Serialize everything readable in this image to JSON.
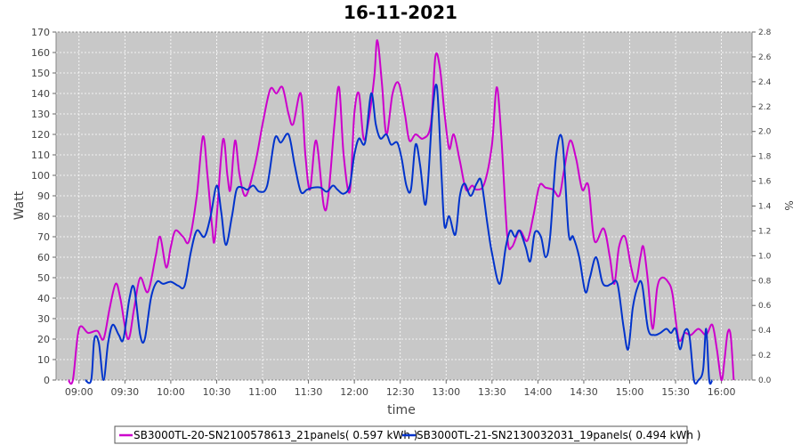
{
  "chart_data": {
    "type": "line",
    "title": "16-11-2021",
    "xlabel": "time",
    "ylabel": "Watt",
    "y2label": "%",
    "ylim": [
      0,
      170
    ],
    "y2lim": [
      0,
      2.8
    ],
    "xlim": [
      "08:45",
      "16:20"
    ],
    "yticks": [
      0,
      10,
      20,
      30,
      40,
      50,
      60,
      70,
      80,
      90,
      100,
      110,
      120,
      130,
      140,
      150,
      160,
      170
    ],
    "y2ticks": [
      "0.0",
      "0.2",
      "0.4",
      "0.6",
      "0.8",
      "1.0",
      "1.2",
      "1.4",
      "1.6",
      "1.8",
      "2.0",
      "2.2",
      "2.4",
      "2.6",
      "2.8"
    ],
    "xticks": [
      "09:00",
      "09:30",
      "10:00",
      "10:30",
      "11:00",
      "11:30",
      "12:00",
      "12:30",
      "13:00",
      "13:30",
      "14:00",
      "14:30",
      "15:00",
      "15:30",
      "16:00"
    ],
    "grid": true,
    "legend_position": "bottom",
    "series": [
      {
        "name": "SB3000TL-20-SN2100578613_21panels( 0.597 kWh )",
        "color": "#cc00cc",
        "points": [
          [
            "08:53",
            0
          ],
          [
            "08:56",
            0
          ],
          [
            "09:00",
            25
          ],
          [
            "09:06",
            23
          ],
          [
            "09:12",
            24
          ],
          [
            "09:16",
            20
          ],
          [
            "09:20",
            35
          ],
          [
            "09:24",
            47
          ],
          [
            "09:27",
            40
          ],
          [
            "09:32",
            20
          ],
          [
            "09:36",
            35
          ],
          [
            "09:40",
            50
          ],
          [
            "09:45",
            43
          ],
          [
            "09:50",
            60
          ],
          [
            "09:53",
            70
          ],
          [
            "09:57",
            55
          ],
          [
            "10:00",
            65
          ],
          [
            "10:03",
            73
          ],
          [
            "10:08",
            70
          ],
          [
            "10:12",
            68
          ],
          [
            "10:17",
            90
          ],
          [
            "10:21",
            119
          ],
          [
            "10:24",
            100
          ],
          [
            "10:27",
            75
          ],
          [
            "10:29",
            70
          ],
          [
            "10:34",
            117
          ],
          [
            "10:37",
            100
          ],
          [
            "10:39",
            93
          ],
          [
            "10:42",
            117
          ],
          [
            "10:45",
            100
          ],
          [
            "10:49",
            90
          ],
          [
            "10:55",
            105
          ],
          [
            "11:00",
            125
          ],
          [
            "11:05",
            142
          ],
          [
            "11:09",
            140
          ],
          [
            "11:13",
            143
          ],
          [
            "11:17",
            130
          ],
          [
            "11:20",
            125
          ],
          [
            "11:25",
            140
          ],
          [
            "11:28",
            110
          ],
          [
            "11:31",
            93
          ],
          [
            "11:35",
            117
          ],
          [
            "11:40",
            85
          ],
          [
            "11:43",
            90
          ],
          [
            "11:47",
            125
          ],
          [
            "11:50",
            143
          ],
          [
            "11:53",
            110
          ],
          [
            "11:57",
            92
          ],
          [
            "12:00",
            130
          ],
          [
            "12:03",
            140
          ],
          [
            "12:06",
            118
          ],
          [
            "12:09",
            125
          ],
          [
            "12:13",
            148
          ],
          [
            "12:15",
            166
          ],
          [
            "12:18",
            145
          ],
          [
            "12:21",
            120
          ],
          [
            "12:25",
            140
          ],
          [
            "12:29",
            145
          ],
          [
            "12:33",
            130
          ],
          [
            "12:36",
            117
          ],
          [
            "12:40",
            120
          ],
          [
            "12:45",
            118
          ],
          [
            "12:50",
            125
          ],
          [
            "12:53",
            158
          ],
          [
            "12:56",
            152
          ],
          [
            "12:59",
            130
          ],
          [
            "13:02",
            113
          ],
          [
            "13:05",
            120
          ],
          [
            "13:09",
            107
          ],
          [
            "13:13",
            93
          ],
          [
            "13:17",
            95
          ],
          [
            "13:20",
            93
          ],
          [
            "13:25",
            96
          ],
          [
            "13:30",
            115
          ],
          [
            "13:33",
            143
          ],
          [
            "13:36",
            120
          ],
          [
            "13:40",
            70
          ],
          [
            "13:43",
            65
          ],
          [
            "13:48",
            73
          ],
          [
            "13:53",
            68
          ],
          [
            "13:57",
            80
          ],
          [
            "14:01",
            95
          ],
          [
            "14:05",
            94
          ],
          [
            "14:10",
            93
          ],
          [
            "14:14",
            90
          ],
          [
            "14:17",
            102
          ],
          [
            "14:21",
            117
          ],
          [
            "14:25",
            108
          ],
          [
            "14:29",
            93
          ],
          [
            "14:33",
            95
          ],
          [
            "14:37",
            68
          ],
          [
            "14:43",
            74
          ],
          [
            "14:47",
            60
          ],
          [
            "14:50",
            47
          ],
          [
            "14:53",
            65
          ],
          [
            "14:57",
            70
          ],
          [
            "15:01",
            55
          ],
          [
            "15:04",
            48
          ],
          [
            "15:07",
            60
          ],
          [
            "15:09",
            65
          ],
          [
            "15:12",
            48
          ],
          [
            "15:15",
            25
          ],
          [
            "15:18",
            45
          ],
          [
            "15:21",
            50
          ],
          [
            "15:25",
            48
          ],
          [
            "15:28",
            42
          ],
          [
            "15:32",
            20
          ],
          [
            "15:36",
            23
          ],
          [
            "15:40",
            22
          ],
          [
            "15:45",
            25
          ],
          [
            "15:50",
            22
          ],
          [
            "15:54",
            27
          ],
          [
            "15:57",
            15
          ],
          [
            "16:00",
            0
          ],
          [
            "16:02",
            10
          ],
          [
            "16:04",
            23
          ],
          [
            "16:06",
            22
          ],
          [
            "16:08",
            0
          ]
        ]
      },
      {
        "name": "SB3000TL-21-SN2130032031_19panels( 0.494 kWh )",
        "color": "#0033cc",
        "points": [
          [
            "09:04",
            0
          ],
          [
            "09:08",
            0
          ],
          [
            "09:10",
            20
          ],
          [
            "09:13",
            18
          ],
          [
            "09:16",
            0
          ],
          [
            "09:19",
            18
          ],
          [
            "09:22",
            27
          ],
          [
            "09:26",
            22
          ],
          [
            "09:29",
            20
          ],
          [
            "09:33",
            40
          ],
          [
            "09:36",
            45
          ],
          [
            "09:40",
            22
          ],
          [
            "09:43",
            20
          ],
          [
            "09:47",
            40
          ],
          [
            "09:51",
            48
          ],
          [
            "09:55",
            47
          ],
          [
            "10:00",
            48
          ],
          [
            "10:05",
            46
          ],
          [
            "10:09",
            46
          ],
          [
            "10:13",
            62
          ],
          [
            "10:17",
            73
          ],
          [
            "10:22",
            70
          ],
          [
            "10:26",
            80
          ],
          [
            "10:30",
            95
          ],
          [
            "10:33",
            82
          ],
          [
            "10:36",
            66
          ],
          [
            "10:40",
            80
          ],
          [
            "10:43",
            93
          ],
          [
            "10:47",
            94
          ],
          [
            "10:50",
            93
          ],
          [
            "10:54",
            95
          ],
          [
            "10:58",
            92
          ],
          [
            "11:03",
            95
          ],
          [
            "11:08",
            118
          ],
          [
            "11:12",
            116
          ],
          [
            "11:17",
            120
          ],
          [
            "11:21",
            105
          ],
          [
            "11:25",
            92
          ],
          [
            "11:29",
            93
          ],
          [
            "11:33",
            94
          ],
          [
            "11:38",
            94
          ],
          [
            "11:42",
            92
          ],
          [
            "11:46",
            95
          ],
          [
            "11:49",
            93
          ],
          [
            "11:53",
            91
          ],
          [
            "11:57",
            95
          ],
          [
            "12:00",
            110
          ],
          [
            "12:03",
            118
          ],
          [
            "12:07",
            116
          ],
          [
            "12:11",
            140
          ],
          [
            "12:14",
            125
          ],
          [
            "12:17",
            118
          ],
          [
            "12:21",
            120
          ],
          [
            "12:24",
            115
          ],
          [
            "12:28",
            116
          ],
          [
            "12:31",
            108
          ],
          [
            "12:34",
            95
          ],
          [
            "12:37",
            93
          ],
          [
            "12:40",
            115
          ],
          [
            "12:43",
            105
          ],
          [
            "12:46",
            86
          ],
          [
            "12:48",
            95
          ],
          [
            "12:51",
            130
          ],
          [
            "12:54",
            143
          ],
          [
            "12:57",
            100
          ],
          [
            "12:59",
            75
          ],
          [
            "13:02",
            80
          ],
          [
            "13:06",
            71
          ],
          [
            "13:09",
            90
          ],
          [
            "13:12",
            96
          ],
          [
            "13:16",
            90
          ],
          [
            "13:20",
            96
          ],
          [
            "13:23",
            97
          ],
          [
            "13:27",
            76
          ],
          [
            "13:30",
            62
          ],
          [
            "13:35",
            47
          ],
          [
            "13:39",
            65
          ],
          [
            "13:42",
            73
          ],
          [
            "13:45",
            70
          ],
          [
            "13:48",
            73
          ],
          [
            "13:52",
            65
          ],
          [
            "13:55",
            58
          ],
          [
            "13:58",
            72
          ],
          [
            "14:02",
            70
          ],
          [
            "14:05",
            60
          ],
          [
            "14:08",
            70
          ],
          [
            "14:12",
            110
          ],
          [
            "14:16",
            117
          ],
          [
            "14:20",
            72
          ],
          [
            "14:23",
            70
          ],
          [
            "14:27",
            60
          ],
          [
            "14:31",
            43
          ],
          [
            "14:34",
            50
          ],
          [
            "14:38",
            60
          ],
          [
            "14:42",
            48
          ],
          [
            "14:45",
            46
          ],
          [
            "14:48",
            47
          ],
          [
            "14:52",
            47
          ],
          [
            "14:56",
            26
          ],
          [
            "14:59",
            15
          ],
          [
            "15:02",
            35
          ],
          [
            "15:05",
            45
          ],
          [
            "15:08",
            47
          ],
          [
            "15:12",
            25
          ],
          [
            "15:16",
            22
          ],
          [
            "15:20",
            23
          ],
          [
            "15:24",
            25
          ],
          [
            "15:27",
            23
          ],
          [
            "15:30",
            25
          ],
          [
            "15:33",
            15
          ],
          [
            "15:36",
            24
          ],
          [
            "15:39",
            22
          ],
          [
            "15:42",
            0
          ],
          [
            "15:45",
            0
          ],
          [
            "15:48",
            5
          ],
          [
            "15:50",
            25
          ],
          [
            "15:52",
            0
          ],
          [
            "15:54",
            0
          ]
        ]
      }
    ]
  }
}
